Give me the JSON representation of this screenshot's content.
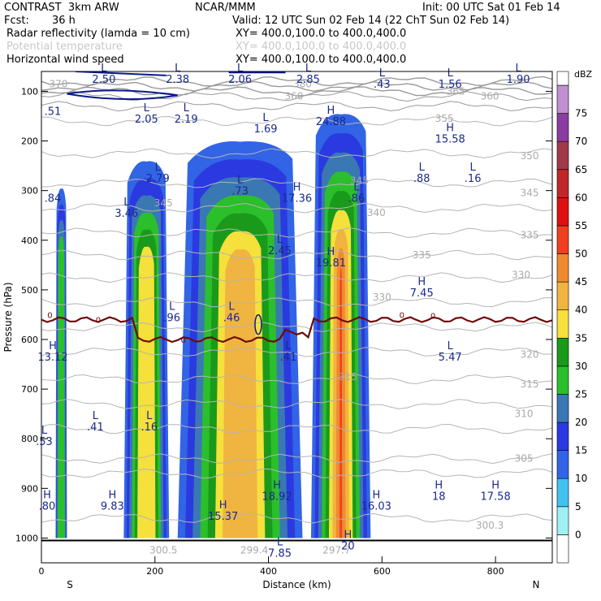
{
  "header": {
    "title": "CONTRAST  3km ARW",
    "center": "NCAR/MMM",
    "init": "Init: 00 UTC Sat 01 Feb 14",
    "fcst_label": "Fcst:",
    "fcst_value": "36 h",
    "valid": "Valid: 12 UTC Sun 02 Feb 14 (22 ChT Sun 02 Feb 14)"
  },
  "fields": [
    {
      "name": "Radar reflectivity (lamda = 10 cm)",
      "xy": "XY= 400.0,100.0 to 400.0,400.0"
    },
    {
      "name": "Potential temperature",
      "xy": "XY= 400.0,100.0 to 400.0,400.0"
    },
    {
      "name": "Horizontal wind speed",
      "xy": "XY= 400.0,100.0 to 400.0,400.0"
    }
  ],
  "chart_data": {
    "type": "cross-section",
    "xlabel": "Distance (km)",
    "ylabel": "Pressure (hPa)",
    "xlim": [
      0,
      900
    ],
    "ylim": [
      1050,
      60
    ],
    "x_ticks": [
      0,
      200,
      400,
      600,
      800
    ],
    "y_ticks": [
      100,
      200,
      300,
      400,
      500,
      600,
      700,
      800,
      900,
      1000
    ],
    "x_end_labels": {
      "left": "S",
      "right": "N"
    },
    "colorbar": {
      "unit": "dBZ",
      "levels": [
        0,
        5,
        10,
        15,
        20,
        25,
        30,
        35,
        40,
        45,
        50,
        55,
        60,
        65,
        70,
        75
      ],
      "colors": [
        "#ffffff",
        "#9ff0f5",
        "#43c2f0",
        "#3264e6",
        "#2a3ae0",
        "#3a78b4",
        "#2bbf2b",
        "#1a9a1a",
        "#f5e03c",
        "#f0b440",
        "#f08a30",
        "#f04020",
        "#e01010",
        "#c02828",
        "#a03a48",
        "#8a3ca0",
        "#c090d0"
      ]
    },
    "zero_isotherm_label": "0",
    "theta_contour_labels": [
      {
        "x": 445,
        "p": 110,
        "text": "360"
      },
      {
        "x": 790,
        "p": 110,
        "text": "360"
      },
      {
        "x": 730,
        "p": 100,
        "text": "365"
      },
      {
        "x": 30,
        "p": 85,
        "text": "370"
      },
      {
        "x": 460,
        "p": 85,
        "text": "380"
      },
      {
        "x": 710,
        "p": 155,
        "text": "355"
      },
      {
        "x": 860,
        "p": 230,
        "text": "350"
      },
      {
        "x": 860,
        "p": 305,
        "text": "345"
      },
      {
        "x": 560,
        "p": 280,
        "text": "345"
      },
      {
        "x": 215,
        "p": 325,
        "text": "345"
      },
      {
        "x": 590,
        "p": 345,
        "text": "340"
      },
      {
        "x": 860,
        "p": 390,
        "text": "335"
      },
      {
        "x": 670,
        "p": 430,
        "text": "335"
      },
      {
        "x": 845,
        "p": 470,
        "text": "330"
      },
      {
        "x": 600,
        "p": 515,
        "text": "330"
      },
      {
        "x": 860,
        "p": 630,
        "text": "320"
      },
      {
        "x": 540,
        "p": 675,
        "text": "315"
      },
      {
        "x": 860,
        "p": 690,
        "text": "315"
      },
      {
        "x": 850,
        "p": 750,
        "text": "310"
      },
      {
        "x": 850,
        "p": 840,
        "text": "305"
      },
      {
        "x": 790,
        "p": 975,
        "text": "300.3"
      }
    ],
    "wind_extrema": [
      {
        "x": 110,
        "p": 60,
        "type": "L",
        "value": "2.50"
      },
      {
        "x": 240,
        "p": 60,
        "type": "L",
        "value": "2.38"
      },
      {
        "x": 350,
        "p": 60,
        "type": "L",
        "value": "2.06"
      },
      {
        "x": 470,
        "p": 60,
        "type": "L",
        "value": "2.85"
      },
      {
        "x": 600,
        "p": 70,
        "type": "L",
        "value": ".43"
      },
      {
        "x": 720,
        "p": 70,
        "type": "L",
        "value": "1.56"
      },
      {
        "x": 840,
        "p": 60,
        "type": "L",
        "value": "1.90"
      },
      {
        "x": 20,
        "p": 125,
        "type": "",
        "value": ".51"
      },
      {
        "x": 185,
        "p": 140,
        "type": "L",
        "value": "2.05"
      },
      {
        "x": 255,
        "p": 140,
        "type": "L",
        "value": "2.19"
      },
      {
        "x": 395,
        "p": 160,
        "type": "L",
        "value": "1.69"
      },
      {
        "x": 510,
        "p": 145,
        "type": "H",
        "value": "24.88"
      },
      {
        "x": 720,
        "p": 180,
        "type": "H",
        "value": "15.58"
      },
      {
        "x": 205,
        "p": 260,
        "type": "L",
        "value": "2.79"
      },
      {
        "x": 350,
        "p": 285,
        "type": "L",
        "value": ".73"
      },
      {
        "x": 450,
        "p": 300,
        "type": "H",
        "value": "17.36"
      },
      {
        "x": 555,
        "p": 300,
        "type": "L",
        "value": ".86"
      },
      {
        "x": 670,
        "p": 260,
        "type": "L",
        "value": ".88"
      },
      {
        "x": 760,
        "p": 260,
        "type": "L",
        "value": ".16"
      },
      {
        "x": 20,
        "p": 300,
        "type": "",
        "value": ".84"
      },
      {
        "x": 150,
        "p": 330,
        "type": "L",
        "value": "3.46"
      },
      {
        "x": 420,
        "p": 405,
        "type": "L",
        "value": "2.45"
      },
      {
        "x": 510,
        "p": 430,
        "type": "H",
        "value": "19.81"
      },
      {
        "x": 670,
        "p": 490,
        "type": "H",
        "value": "7.45"
      },
      {
        "x": 230,
        "p": 540,
        "type": "L",
        "value": ".96"
      },
      {
        "x": 335,
        "p": 540,
        "type": "L",
        "value": ".46"
      },
      {
        "x": 20,
        "p": 620,
        "type": "H",
        "value": "13.12"
      },
      {
        "x": 435,
        "p": 620,
        "type": "L",
        "value": ".41"
      },
      {
        "x": 720,
        "p": 620,
        "type": "L",
        "value": "5.47"
      },
      {
        "x": 95,
        "p": 760,
        "type": "L",
        "value": ".41"
      },
      {
        "x": 190,
        "p": 760,
        "type": "L",
        "value": ".16"
      },
      {
        "x": 5,
        "p": 790,
        "type": "L",
        "value": ".53"
      },
      {
        "x": 125,
        "p": 920,
        "type": "H",
        "value": "9.83"
      },
      {
        "x": 320,
        "p": 940,
        "type": "H",
        "value": "15.37"
      },
      {
        "x": 415,
        "p": 900,
        "type": "H",
        "value": "18.92"
      },
      {
        "x": 590,
        "p": 920,
        "type": "H",
        "value": "16.03"
      },
      {
        "x": 700,
        "p": 900,
        "type": "H",
        "value": "18"
      },
      {
        "x": 800,
        "p": 900,
        "type": "H",
        "value": "17.58"
      },
      {
        "x": 10,
        "p": 920,
        "type": "H",
        "value": ".80"
      },
      {
        "x": 540,
        "p": 1000,
        "type": "H",
        "value": "20"
      },
      {
        "x": 420,
        "p": 1015,
        "type": "L",
        "value": "7.85"
      }
    ],
    "surface_theta_labels": [
      {
        "x": 215,
        "p": 1025,
        "text": "300.5"
      },
      {
        "x": 375,
        "p": 1025,
        "text": "299.4"
      },
      {
        "x": 520,
        "p": 1025,
        "text": "297.7"
      }
    ],
    "reflectivity_columns": [
      {
        "x0": 25,
        "x1": 45,
        "p_top": 290,
        "p_bot": 1000,
        "layers": [
          [
            20,
            10
          ],
          [
            20,
            15
          ],
          [
            25,
            20
          ],
          [
            20,
            25
          ]
        ]
      },
      {
        "x0": 145,
        "x1": 225,
        "p_top": 235,
        "p_bot": 1000,
        "layers": [
          [
            40,
            10
          ],
          [
            25,
            15
          ],
          [
            25,
            20
          ],
          [
            20,
            25
          ],
          [
            12,
            30
          ],
          [
            6,
            35
          ]
        ]
      },
      {
        "x0": 240,
        "x1": 460,
        "p_top": 195,
        "p_bot": 1000,
        "layers": [
          [
            50,
            10
          ],
          [
            45,
            15
          ],
          [
            40,
            20
          ],
          [
            40,
            25
          ],
          [
            35,
            30
          ],
          [
            30,
            35
          ],
          [
            20,
            40
          ]
        ]
      },
      {
        "x0": 475,
        "x1": 580,
        "p_top": 140,
        "p_bot": 1000,
        "layers": [
          [
            28,
            10
          ],
          [
            22,
            15
          ],
          [
            18,
            20
          ],
          [
            16,
            25
          ],
          [
            14,
            30
          ],
          [
            12,
            35
          ],
          [
            12,
            40
          ],
          [
            10,
            45
          ],
          [
            10,
            50
          ],
          [
            8,
            55
          ]
        ]
      }
    ]
  }
}
